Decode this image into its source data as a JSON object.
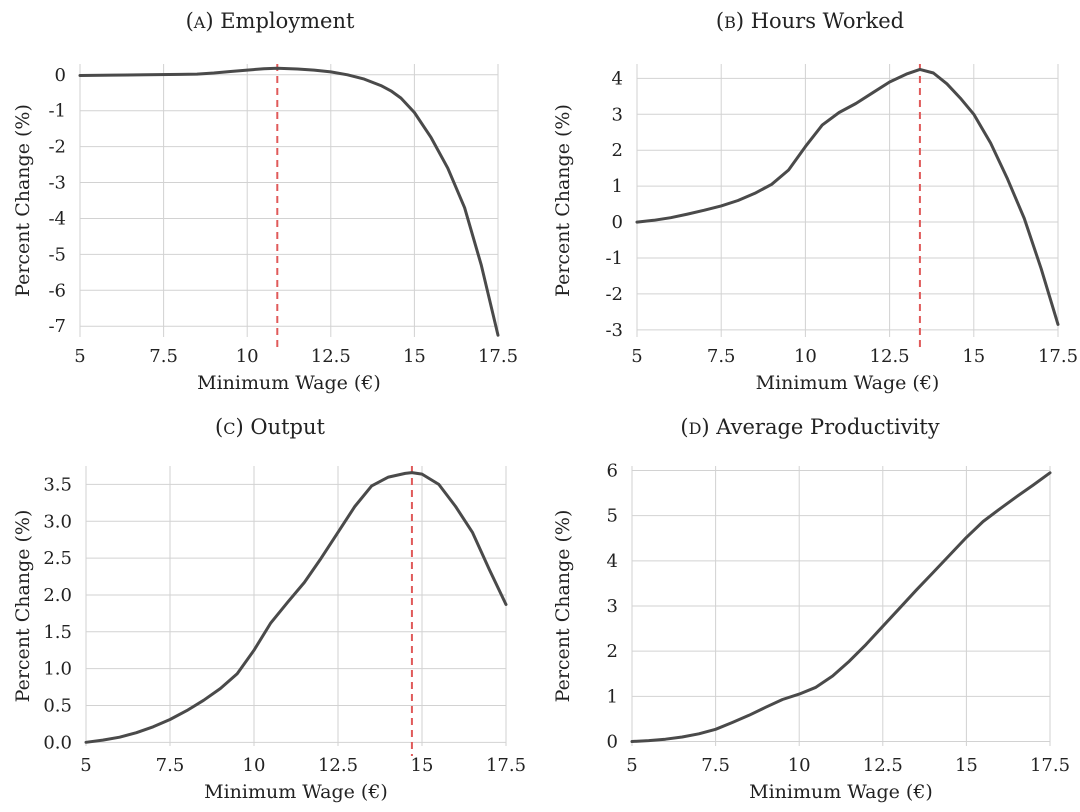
{
  "chart_data": [
    {
      "type": "line",
      "panel_letter": "A",
      "title": "Employment",
      "xlabel": "Minimum Wage (€)",
      "ylabel": "Percent Change (%)",
      "xlim": [
        5,
        17.5
      ],
      "ylim": [
        -7.3,
        0.3
      ],
      "xticks": [
        5,
        7.5,
        10,
        12.5,
        15,
        17.5
      ],
      "xtick_labels": [
        "5",
        "7.5",
        "10",
        "12.5",
        "15",
        "17.5"
      ],
      "yticks": [
        0,
        -1,
        -2,
        -3,
        -4,
        -5,
        -6,
        -7
      ],
      "ytick_labels": [
        "0",
        "-1",
        "-2",
        "-3",
        "-4",
        "-5",
        "-6",
        "-7"
      ],
      "grid": true,
      "vline": 10.9,
      "x": [
        5,
        6,
        7,
        8,
        8.5,
        9,
        9.5,
        10,
        10.5,
        10.9,
        11.5,
        12,
        12.5,
        13,
        13.5,
        14,
        14.3,
        14.6,
        15,
        15.5,
        16,
        16.5,
        17,
        17.5
      ],
      "y": [
        -0.02,
        -0.01,
        0.0,
        0.01,
        0.02,
        0.05,
        0.09,
        0.13,
        0.17,
        0.18,
        0.16,
        0.13,
        0.08,
        0.0,
        -0.12,
        -0.3,
        -0.45,
        -0.65,
        -1.05,
        -1.75,
        -2.6,
        -3.7,
        -5.3,
        -7.25
      ]
    },
    {
      "type": "line",
      "panel_letter": "B",
      "title": "Hours Worked",
      "xlabel": "Minimum Wage (€)",
      "ylabel": "Percent Change (%)",
      "xlim": [
        5,
        17.5
      ],
      "ylim": [
        -3.2,
        4.4
      ],
      "xticks": [
        5,
        7.5,
        10,
        12.5,
        15,
        17.5
      ],
      "xtick_labels": [
        "5",
        "7.5",
        "10",
        "12.5",
        "15",
        "17.5"
      ],
      "yticks": [
        4,
        3,
        2,
        1,
        0,
        -1,
        -2,
        -3
      ],
      "ytick_labels": [
        "4",
        "3",
        "2",
        "1",
        "0",
        "-1",
        "-2",
        "-3"
      ],
      "grid": true,
      "vline": 13.4,
      "x": [
        5,
        5.5,
        6,
        6.5,
        7,
        7.5,
        8,
        8.5,
        9,
        9.5,
        10,
        10.5,
        11,
        11.5,
        12,
        12.5,
        13,
        13.4,
        13.8,
        14.2,
        14.6,
        15,
        15.5,
        16,
        16.5,
        17,
        17.5
      ],
      "y": [
        0.0,
        0.05,
        0.12,
        0.22,
        0.33,
        0.45,
        0.6,
        0.8,
        1.05,
        1.45,
        2.1,
        2.7,
        3.05,
        3.3,
        3.6,
        3.9,
        4.12,
        4.25,
        4.15,
        3.85,
        3.45,
        3.0,
        2.2,
        1.2,
        0.1,
        -1.3,
        -2.85
      ]
    },
    {
      "type": "line",
      "panel_letter": "C",
      "title": "Output",
      "xlabel": "Minimum Wage (€)",
      "ylabel": "Percent Change (%)",
      "xlim": [
        5,
        17.5
      ],
      "ylim": [
        -0.05,
        3.75
      ],
      "xticks": [
        5,
        7.5,
        10,
        12.5,
        15,
        17.5
      ],
      "xtick_labels": [
        "5",
        "7.5",
        "10",
        "12.5",
        "15",
        "17.5"
      ],
      "yticks": [
        0.0,
        0.5,
        1.0,
        1.5,
        2.0,
        2.5,
        3.0,
        3.5
      ],
      "ytick_labels": [
        "0.0",
        "0.5",
        "1.0",
        "1.5",
        "2.0",
        "2.5",
        "3.0",
        "3.5"
      ],
      "grid": true,
      "vline": 14.7,
      "x": [
        5,
        5.5,
        6,
        6.5,
        7,
        7.5,
        8,
        8.5,
        9,
        9.5,
        10,
        10.5,
        11,
        11.5,
        12,
        12.5,
        13,
        13.5,
        14,
        14.5,
        14.7,
        15,
        15.5,
        16,
        16.5,
        17,
        17.5
      ],
      "y": [
        0.0,
        0.03,
        0.07,
        0.13,
        0.21,
        0.31,
        0.43,
        0.57,
        0.73,
        0.93,
        1.25,
        1.62,
        1.9,
        2.17,
        2.5,
        2.85,
        3.2,
        3.48,
        3.6,
        3.65,
        3.66,
        3.64,
        3.5,
        3.2,
        2.85,
        2.35,
        1.87
      ]
    },
    {
      "type": "line",
      "panel_letter": "D",
      "title": "Average Productivity",
      "xlabel": "Minimum Wage (€)",
      "ylabel": "Percent Change (%)",
      "xlim": [
        5,
        17.5
      ],
      "ylim": [
        -0.1,
        6.1
      ],
      "xticks": [
        5,
        7.5,
        10,
        12.5,
        15,
        17.5
      ],
      "xtick_labels": [
        "5",
        "7.5",
        "10",
        "12.5",
        "15",
        "17.5"
      ],
      "yticks": [
        6,
        5,
        4,
        3,
        2,
        1,
        0
      ],
      "ytick_labels": [
        "6",
        "5",
        "4",
        "3",
        "2",
        "1",
        "0"
      ],
      "grid": true,
      "vline": null,
      "x": [
        5,
        5.5,
        6,
        6.5,
        7,
        7.5,
        8,
        8.5,
        9,
        9.5,
        10,
        10.5,
        11,
        11.5,
        12,
        12.5,
        13,
        13.5,
        14,
        14.5,
        15,
        15.5,
        16,
        16.5,
        17,
        17.5
      ],
      "y": [
        0.0,
        0.02,
        0.05,
        0.1,
        0.17,
        0.27,
        0.42,
        0.58,
        0.76,
        0.93,
        1.05,
        1.2,
        1.45,
        1.78,
        2.15,
        2.55,
        2.95,
        3.35,
        3.74,
        4.13,
        4.52,
        4.87,
        5.15,
        5.42,
        5.68,
        5.95
      ]
    }
  ]
}
